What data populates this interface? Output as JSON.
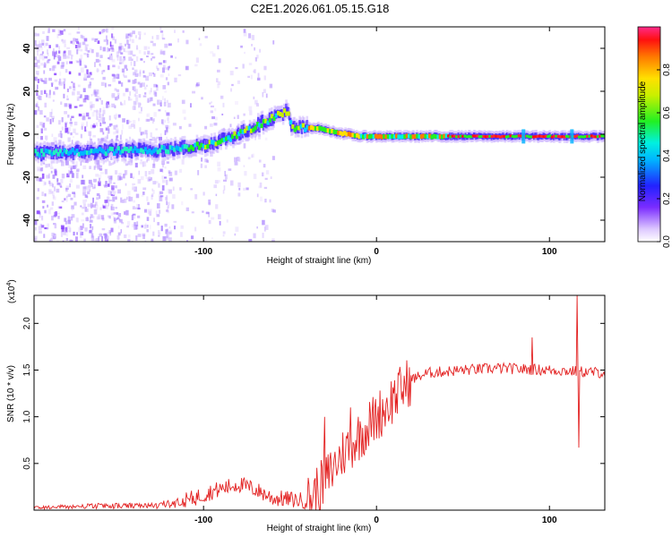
{
  "title": "C2E1.2026.061.05.15.G18",
  "chart_data": [
    {
      "type": "heatmap",
      "name": "spectrogram",
      "xlabel": "Height of straight line (km)",
      "ylabel": "Frequency (Hz)",
      "xlim": [
        -198,
        132
      ],
      "ylim": [
        -50,
        50
      ],
      "x_ticks": [
        -100,
        0,
        100
      ],
      "y_ticks": [
        -40,
        -20,
        0,
        20,
        40
      ],
      "colorbar": {
        "label": "Normalized spectral amplitude",
        "range": [
          0,
          1
        ],
        "ticks": [
          0.0,
          0.2,
          0.4,
          0.6,
          0.8
        ]
      },
      "ridge": [
        {
          "x": -198,
          "f": -9
        },
        {
          "x": -160,
          "f": -8
        },
        {
          "x": -120,
          "f": -7
        },
        {
          "x": -100,
          "f": -5
        },
        {
          "x": -80,
          "f": 0
        },
        {
          "x": -65,
          "f": 6
        },
        {
          "x": -52,
          "f": 11
        },
        {
          "x": -50,
          "f": 3
        },
        {
          "x": -35,
          "f": 3
        },
        {
          "x": -25,
          "f": 1
        },
        {
          "x": -10,
          "f": -1
        },
        {
          "x": 20,
          "f": -1
        },
        {
          "x": 60,
          "f": -1
        },
        {
          "x": 132,
          "f": -1
        }
      ]
    },
    {
      "type": "line",
      "name": "snr",
      "xlabel": "Height of straight line (km)",
      "ylabel": "SNR (10 * v/v)",
      "y_scale_label": "(x10",
      "y_scale_exponent": "4",
      "xlim": [
        -198,
        132
      ],
      "ylim": [
        0,
        2.3
      ],
      "x_ticks": [
        -100,
        0,
        100
      ],
      "y_ticks": [
        0.5,
        1.0,
        1.5,
        2.0
      ],
      "color": "#e32222",
      "envelope": [
        {
          "x": -198,
          "y": 0.03
        },
        {
          "x": -160,
          "y": 0.05
        },
        {
          "x": -130,
          "y": 0.05
        },
        {
          "x": -110,
          "y": 0.1
        },
        {
          "x": -95,
          "y": 0.2
        },
        {
          "x": -80,
          "y": 0.28
        },
        {
          "x": -70,
          "y": 0.22
        },
        {
          "x": -60,
          "y": 0.13
        },
        {
          "x": -40,
          "y": 0.1
        },
        {
          "x": -30,
          "y": 0.3
        },
        {
          "x": -20,
          "y": 0.6
        },
        {
          "x": -10,
          "y": 0.8
        },
        {
          "x": 0,
          "y": 1.0
        },
        {
          "x": 10,
          "y": 1.2
        },
        {
          "x": 20,
          "y": 1.4
        },
        {
          "x": 30,
          "y": 1.47
        },
        {
          "x": 50,
          "y": 1.5
        },
        {
          "x": 70,
          "y": 1.52
        },
        {
          "x": 100,
          "y": 1.5
        },
        {
          "x": 132,
          "y": 1.47
        }
      ],
      "spikes": [
        {
          "x": -30,
          "y": 1.0
        },
        {
          "x": -15,
          "y": 1.1
        },
        {
          "x": 10,
          "y": 1.25
        },
        {
          "x": 90,
          "y": 1.85
        },
        {
          "x": 116,
          "y": 2.3
        },
        {
          "x": 117,
          "y": 0.67
        }
      ]
    }
  ]
}
